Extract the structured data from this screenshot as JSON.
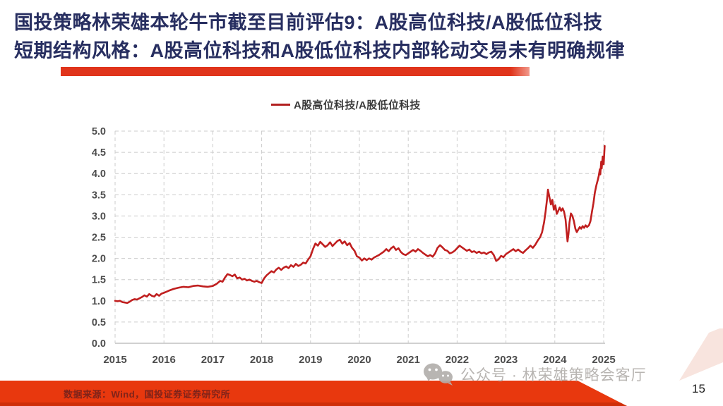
{
  "slide": {
    "title_line1": "国投策略林荣雄本轮牛市截至目前评估9：A股高位科技/A股低位科技",
    "title_line2": "短期结构风格：A股高位科技和A股低位科技内部轮动交易未有明确规律",
    "source_note": "数据来源：Wind，国投证券证券研究所",
    "watermark_text": "公众号 · 林荣雄策略会客厅",
    "page_number": "15",
    "title_color": "#272e60",
    "accent_color": "#e0341b",
    "footer_color": "#e8380e"
  },
  "chart_data": {
    "type": "line",
    "title": "",
    "xlabel": "",
    "ylabel": "",
    "grid": "dashed",
    "legend_position": "top-center",
    "xlim": [
      2015,
      2025.1
    ],
    "ylim": [
      0,
      5
    ],
    "x_ticks": [
      2015,
      2016,
      2017,
      2018,
      2019,
      2020,
      2021,
      2022,
      2023,
      2024,
      2025
    ],
    "y_ticks": [
      "0.0",
      "0.5",
      "1.0",
      "1.5",
      "2.0",
      "2.5",
      "3.0",
      "3.5",
      "4.0",
      "4.5",
      "5.0"
    ],
    "legend": [
      {
        "label": "A股高位科技/A股低位科技",
        "color": "#b22020"
      }
    ],
    "series": [
      {
        "name": "A股高位科技/A股低位科技",
        "color": "#c01f1f",
        "points": [
          [
            2015.0,
            1.0
          ],
          [
            2015.05,
            0.99
          ],
          [
            2015.1,
            1.0
          ],
          [
            2015.15,
            0.97
          ],
          [
            2015.2,
            0.96
          ],
          [
            2015.25,
            0.95
          ],
          [
            2015.3,
            0.98
          ],
          [
            2015.35,
            1.02
          ],
          [
            2015.4,
            1.04
          ],
          [
            2015.45,
            1.03
          ],
          [
            2015.5,
            1.06
          ],
          [
            2015.55,
            1.09
          ],
          [
            2015.6,
            1.13
          ],
          [
            2015.65,
            1.1
          ],
          [
            2015.7,
            1.16
          ],
          [
            2015.75,
            1.12
          ],
          [
            2015.8,
            1.1
          ],
          [
            2015.85,
            1.16
          ],
          [
            2015.9,
            1.12
          ],
          [
            2015.95,
            1.17
          ],
          [
            2016.0,
            1.19
          ],
          [
            2016.1,
            1.24
          ],
          [
            2016.2,
            1.28
          ],
          [
            2016.3,
            1.31
          ],
          [
            2016.4,
            1.33
          ],
          [
            2016.5,
            1.32
          ],
          [
            2016.6,
            1.35
          ],
          [
            2016.7,
            1.36
          ],
          [
            2016.8,
            1.34
          ],
          [
            2016.9,
            1.33
          ],
          [
            2017.0,
            1.35
          ],
          [
            2017.08,
            1.4
          ],
          [
            2017.15,
            1.47
          ],
          [
            2017.2,
            1.45
          ],
          [
            2017.25,
            1.55
          ],
          [
            2017.3,
            1.63
          ],
          [
            2017.35,
            1.61
          ],
          [
            2017.4,
            1.58
          ],
          [
            2017.45,
            1.62
          ],
          [
            2017.5,
            1.53
          ],
          [
            2017.55,
            1.55
          ],
          [
            2017.6,
            1.5
          ],
          [
            2017.65,
            1.52
          ],
          [
            2017.7,
            1.48
          ],
          [
            2017.75,
            1.5
          ],
          [
            2017.8,
            1.47
          ],
          [
            2017.85,
            1.45
          ],
          [
            2017.9,
            1.47
          ],
          [
            2017.95,
            1.44
          ],
          [
            2018.0,
            1.42
          ],
          [
            2018.05,
            1.53
          ],
          [
            2018.1,
            1.6
          ],
          [
            2018.15,
            1.65
          ],
          [
            2018.2,
            1.7
          ],
          [
            2018.25,
            1.67
          ],
          [
            2018.3,
            1.74
          ],
          [
            2018.35,
            1.78
          ],
          [
            2018.4,
            1.73
          ],
          [
            2018.45,
            1.78
          ],
          [
            2018.5,
            1.81
          ],
          [
            2018.55,
            1.77
          ],
          [
            2018.6,
            1.84
          ],
          [
            2018.65,
            1.8
          ],
          [
            2018.7,
            1.87
          ],
          [
            2018.75,
            1.82
          ],
          [
            2018.8,
            1.85
          ],
          [
            2018.85,
            1.9
          ],
          [
            2018.9,
            1.88
          ],
          [
            2018.95,
            1.97
          ],
          [
            2019.0,
            2.05
          ],
          [
            2019.05,
            2.22
          ],
          [
            2019.1,
            2.35
          ],
          [
            2019.15,
            2.3
          ],
          [
            2019.2,
            2.39
          ],
          [
            2019.25,
            2.33
          ],
          [
            2019.3,
            2.27
          ],
          [
            2019.35,
            2.31
          ],
          [
            2019.4,
            2.38
          ],
          [
            2019.45,
            2.29
          ],
          [
            2019.5,
            2.35
          ],
          [
            2019.55,
            2.41
          ],
          [
            2019.6,
            2.44
          ],
          [
            2019.65,
            2.35
          ],
          [
            2019.7,
            2.4
          ],
          [
            2019.75,
            2.31
          ],
          [
            2019.8,
            2.36
          ],
          [
            2019.85,
            2.25
          ],
          [
            2019.9,
            2.18
          ],
          [
            2019.95,
            2.05
          ],
          [
            2020.0,
            2.02
          ],
          [
            2020.05,
            1.95
          ],
          [
            2020.1,
            2.0
          ],
          [
            2020.15,
            1.96
          ],
          [
            2020.2,
            2.0
          ],
          [
            2020.25,
            1.97
          ],
          [
            2020.3,
            2.02
          ],
          [
            2020.35,
            2.05
          ],
          [
            2020.4,
            2.08
          ],
          [
            2020.45,
            2.12
          ],
          [
            2020.5,
            2.16
          ],
          [
            2020.55,
            2.22
          ],
          [
            2020.6,
            2.17
          ],
          [
            2020.65,
            2.24
          ],
          [
            2020.7,
            2.28
          ],
          [
            2020.75,
            2.2
          ],
          [
            2020.8,
            2.24
          ],
          [
            2020.85,
            2.15
          ],
          [
            2020.9,
            2.1
          ],
          [
            2020.95,
            2.08
          ],
          [
            2021.0,
            2.12
          ],
          [
            2021.05,
            2.16
          ],
          [
            2021.1,
            2.2
          ],
          [
            2021.15,
            2.16
          ],
          [
            2021.2,
            2.22
          ],
          [
            2021.25,
            2.18
          ],
          [
            2021.3,
            2.13
          ],
          [
            2021.35,
            2.09
          ],
          [
            2021.4,
            2.05
          ],
          [
            2021.45,
            2.08
          ],
          [
            2021.5,
            2.04
          ],
          [
            2021.55,
            2.12
          ],
          [
            2021.6,
            2.25
          ],
          [
            2021.65,
            2.31
          ],
          [
            2021.7,
            2.26
          ],
          [
            2021.75,
            2.2
          ],
          [
            2021.8,
            2.18
          ],
          [
            2021.85,
            2.12
          ],
          [
            2021.9,
            2.14
          ],
          [
            2021.95,
            2.18
          ],
          [
            2022.0,
            2.24
          ],
          [
            2022.05,
            2.3
          ],
          [
            2022.1,
            2.26
          ],
          [
            2022.15,
            2.22
          ],
          [
            2022.2,
            2.18
          ],
          [
            2022.25,
            2.21
          ],
          [
            2022.3,
            2.15
          ],
          [
            2022.35,
            2.17
          ],
          [
            2022.4,
            2.13
          ],
          [
            2022.45,
            2.16
          ],
          [
            2022.5,
            2.12
          ],
          [
            2022.55,
            2.14
          ],
          [
            2022.6,
            2.1
          ],
          [
            2022.65,
            2.14
          ],
          [
            2022.7,
            2.16
          ],
          [
            2022.75,
            2.08
          ],
          [
            2022.8,
            1.94
          ],
          [
            2022.85,
            1.98
          ],
          [
            2022.9,
            2.06
          ],
          [
            2022.95,
            2.03
          ],
          [
            2023.0,
            2.1
          ],
          [
            2023.05,
            2.14
          ],
          [
            2023.1,
            2.18
          ],
          [
            2023.15,
            2.22
          ],
          [
            2023.2,
            2.17
          ],
          [
            2023.25,
            2.21
          ],
          [
            2023.3,
            2.16
          ],
          [
            2023.35,
            2.13
          ],
          [
            2023.4,
            2.19
          ],
          [
            2023.45,
            2.24
          ],
          [
            2023.5,
            2.3
          ],
          [
            2023.55,
            2.25
          ],
          [
            2023.6,
            2.32
          ],
          [
            2023.65,
            2.42
          ],
          [
            2023.7,
            2.5
          ],
          [
            2023.74,
            2.62
          ],
          [
            2023.78,
            2.85
          ],
          [
            2023.81,
            3.1
          ],
          [
            2023.84,
            3.38
          ],
          [
            2023.86,
            3.62
          ],
          [
            2023.89,
            3.44
          ],
          [
            2023.92,
            3.27
          ],
          [
            2023.95,
            3.38
          ],
          [
            2023.98,
            3.15
          ],
          [
            2024.01,
            3.25
          ],
          [
            2024.04,
            3.05
          ],
          [
            2024.07,
            3.12
          ],
          [
            2024.1,
            3.2
          ],
          [
            2024.13,
            3.12
          ],
          [
            2024.16,
            3.18
          ],
          [
            2024.19,
            3.1
          ],
          [
            2024.22,
            2.92
          ],
          [
            2024.24,
            2.65
          ],
          [
            2024.26,
            2.4
          ],
          [
            2024.28,
            2.58
          ],
          [
            2024.3,
            2.85
          ],
          [
            2024.33,
            3.06
          ],
          [
            2024.36,
            3.0
          ],
          [
            2024.39,
            2.88
          ],
          [
            2024.42,
            2.7
          ],
          [
            2024.45,
            2.62
          ],
          [
            2024.48,
            2.68
          ],
          [
            2024.51,
            2.74
          ],
          [
            2024.54,
            2.7
          ],
          [
            2024.57,
            2.76
          ],
          [
            2024.6,
            2.72
          ],
          [
            2024.63,
            2.78
          ],
          [
            2024.66,
            2.74
          ],
          [
            2024.7,
            2.78
          ],
          [
            2024.73,
            2.88
          ],
          [
            2024.76,
            3.1
          ],
          [
            2024.79,
            3.3
          ],
          [
            2024.82,
            3.55
          ],
          [
            2024.85,
            3.72
          ],
          [
            2024.88,
            3.85
          ],
          [
            2024.9,
            3.95
          ],
          [
            2024.92,
            4.1
          ],
          [
            2024.93,
            3.98
          ],
          [
            2024.95,
            4.28
          ],
          [
            2024.96,
            4.12
          ],
          [
            2024.98,
            4.4
          ],
          [
            2025.0,
            4.22
          ],
          [
            2025.02,
            4.65
          ]
        ]
      }
    ]
  }
}
